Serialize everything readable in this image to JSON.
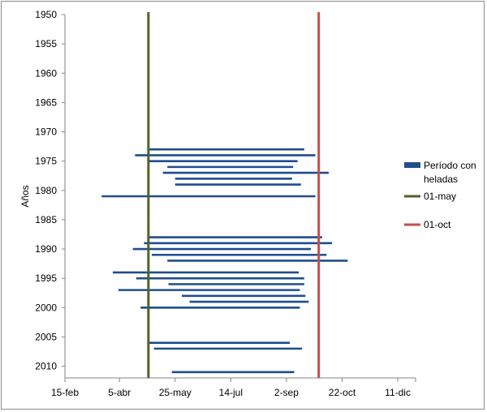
{
  "chart_data": {
    "type": "bar",
    "orientation": "horizontal-range",
    "ylabel": "Años",
    "xlabel": "",
    "y_axis": {
      "reversed": true,
      "range": [
        1950,
        2012
      ],
      "ticks": [
        1950,
        1955,
        1960,
        1965,
        1970,
        1975,
        1980,
        1985,
        1990,
        1995,
        2000,
        2005,
        2010
      ]
    },
    "x_axis": {
      "range_day_of_year": [
        46,
        361
      ],
      "ticks": [
        {
          "day": 46,
          "label": "15-feb"
        },
        {
          "day": 95,
          "label": "5-abr"
        },
        {
          "day": 145,
          "label": "25-may"
        },
        {
          "day": 195,
          "label": "14-jul"
        },
        {
          "day": 245,
          "label": "2-sep"
        },
        {
          "day": 295,
          "label": "22-oct"
        },
        {
          "day": 345,
          "label": "11-dic"
        }
      ]
    },
    "legend": {
      "position": "right",
      "items": [
        {
          "label": "Período con heladas",
          "color": "#1f4e8c",
          "kind": "bar"
        },
        {
          "label": "01-may",
          "color": "#4f6228",
          "kind": "line"
        },
        {
          "label": "01-oct",
          "color": "#c0504d",
          "kind": "line"
        }
      ]
    },
    "reference_lines": [
      {
        "label": "01-may",
        "day": 121,
        "color": "#4f6228"
      },
      {
        "label": "01-oct",
        "day": 274,
        "color": "#c0504d"
      }
    ],
    "series": [
      {
        "name": "Período con heladas",
        "color": "#1f4e8c",
        "ranges": [
          {
            "year": 1973,
            "start": 121,
            "end": 261
          },
          {
            "year": 1974,
            "start": 109,
            "end": 271
          },
          {
            "year": 1975,
            "start": 121,
            "end": 255
          },
          {
            "year": 1976,
            "start": 138,
            "end": 251
          },
          {
            "year": 1977,
            "start": 134,
            "end": 283
          },
          {
            "year": 1978,
            "start": 145,
            "end": 250
          },
          {
            "year": 1979,
            "start": 145,
            "end": 258
          },
          {
            "year": 1981,
            "start": 79,
            "end": 271
          },
          {
            "year": 1988,
            "start": 121,
            "end": 277
          },
          {
            "year": 1989,
            "start": 117,
            "end": 286
          },
          {
            "year": 1990,
            "start": 107,
            "end": 267
          },
          {
            "year": 1991,
            "start": 124,
            "end": 281
          },
          {
            "year": 1992,
            "start": 138,
            "end": 300
          },
          {
            "year": 1994,
            "start": 89,
            "end": 256
          },
          {
            "year": 1995,
            "start": 110,
            "end": 261
          },
          {
            "year": 1996,
            "start": 139,
            "end": 261
          },
          {
            "year": 1997,
            "start": 94,
            "end": 257
          },
          {
            "year": 1998,
            "start": 151,
            "end": 262
          },
          {
            "year": 1999,
            "start": 158,
            "end": 265
          },
          {
            "year": 2000,
            "start": 114,
            "end": 257
          },
          {
            "year": 2006,
            "start": 121,
            "end": 248
          },
          {
            "year": 2007,
            "start": 126,
            "end": 259
          },
          {
            "year": 2011,
            "start": 142,
            "end": 252
          }
        ]
      }
    ]
  }
}
